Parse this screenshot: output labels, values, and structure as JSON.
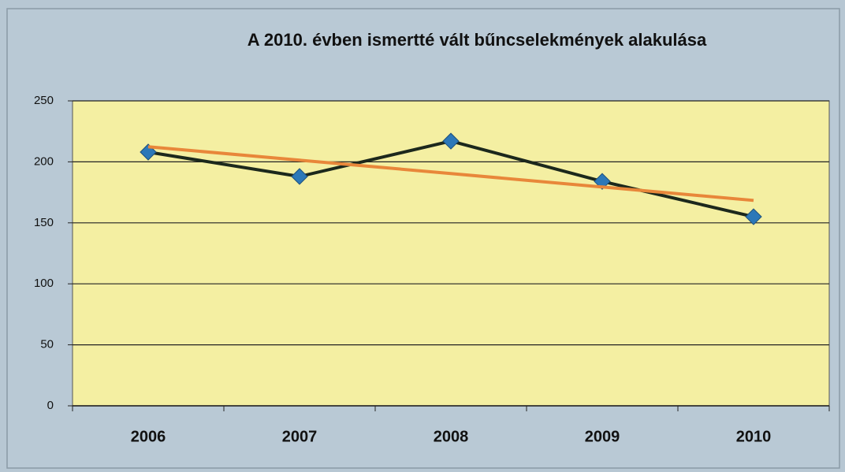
{
  "chart_data": {
    "type": "line",
    "title": "A 2010. évben ismertté vált bűncselekmények alakulása",
    "categories": [
      "2006",
      "2007",
      "2008",
      "2009",
      "2010"
    ],
    "series": [
      {
        "color": "#1c281c",
        "marker": "diamond",
        "marker_color": "#2c78b8",
        "values": [
          208,
          188,
          217,
          184,
          155
        ]
      },
      {
        "color": "#e8873a",
        "values": [
          212.4,
          201.4,
          190.4,
          179.4,
          168.4
        ]
      }
    ],
    "ylim": [
      0,
      250
    ],
    "yticks": [
      0,
      50,
      100,
      150,
      200,
      250
    ],
    "grid": true,
    "plot_background": "#f4efa2"
  }
}
